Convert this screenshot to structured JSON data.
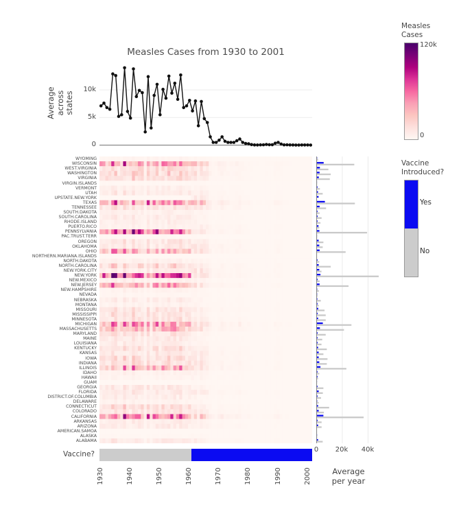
{
  "title": "Measles Cases from 1930 to 2001",
  "years": [
    1930,
    1931,
    1932,
    1933,
    1934,
    1935,
    1936,
    1937,
    1938,
    1939,
    1940,
    1941,
    1942,
    1943,
    1944,
    1945,
    1946,
    1947,
    1948,
    1949,
    1950,
    1951,
    1952,
    1953,
    1954,
    1955,
    1956,
    1957,
    1958,
    1959,
    1960,
    1961,
    1962,
    1963,
    1964,
    1965,
    1966,
    1967,
    1968,
    1969,
    1970,
    1971,
    1972,
    1973,
    1974,
    1975,
    1976,
    1977,
    1978,
    1979,
    1980,
    1981,
    1982,
    1983,
    1984,
    1985,
    1986,
    1987,
    1988,
    1989,
    1990,
    1991,
    1992,
    1993,
    1994,
    1995,
    1996,
    1997,
    1998,
    1999,
    2000,
    2001
  ],
  "states": [
    "WYOMING",
    "WISCONSIN",
    "WEST.VIRGINIA",
    "WASHINGTON",
    "VIRGINIA",
    "VIRGIN.ISLANDS",
    "VERMONT",
    "UTAH",
    "UPSTATE.NEW.YORK",
    "TEXAS",
    "TENNESSEE",
    "SOUTH.DAKOTA",
    "SOUTH.CAROLINA",
    "RHODE.ISLAND",
    "PUERTO.RICO",
    "PENNSYLVANIA",
    "PAC.TRUST.TERR",
    "OREGON",
    "OKLAHOMA",
    "OHIO",
    "NORTHERN.MARIANA.ISLANDS",
    "NORTH.DAKOTA",
    "NORTH.CAROLINA",
    "NEW.YORK.CITY",
    "NEW.YORK",
    "NEW.MEXICO",
    "NEW.JERSEY",
    "NEW.HAMPSHIRE",
    "NEVADA",
    "NEBRASKA",
    "MONTANA",
    "MISSOURI",
    "MISSISSIPPI",
    "MINNESOTA",
    "MICHIGAN",
    "MASSACHUSETTS",
    "MARYLAND",
    "MAINE",
    "LOUISIANA",
    "KENTUCKY",
    "KANSAS",
    "IOWA",
    "INDIANA",
    "ILLINOIS",
    "IDAHO",
    "HAWAII",
    "GUAM",
    "GEORGIA",
    "FLORIDA",
    "DISTRICT.OF.COLUMBIA",
    "DELAWARE",
    "CONNECTICUT",
    "COLORADO",
    "CALIFORNIA",
    "ARKANSAS",
    "ARIZONA",
    "AMERICAN.SAMOA",
    "ALASKA",
    "ALABAMA"
  ],
  "chart_data": [
    {
      "type": "line",
      "title": "Measles Cases from 1930 to 2001",
      "ylabel": "Average across states",
      "y_ticks": [
        "0",
        "5k",
        "10k"
      ],
      "y_tick_values_k": [
        0,
        5,
        10
      ],
      "ylim_k": [
        0,
        15.3
      ],
      "x_years_ref": "years",
      "values_k": [
        7.1,
        7.6,
        6.8,
        6.5,
        12.9,
        12.6,
        5.2,
        5.5,
        14,
        6.1,
        4.9,
        13.8,
        8.8,
        9.9,
        9.5,
        2.4,
        12.4,
        3.1,
        9,
        11,
        5.5,
        10.1,
        8.5,
        12.5,
        9.4,
        11.2,
        8.3,
        12.7,
        6.8,
        7.1,
        8.1,
        6.2,
        8,
        3.5,
        7.9,
        4.8,
        4.1,
        1.5,
        0.5,
        0.5,
        0.9,
        1.5,
        0.7,
        0.5,
        0.5,
        0.5,
        0.8,
        1.1,
        0.5,
        0.3,
        0.25,
        0.1,
        0.04,
        0.03,
        0.05,
        0.06,
        0.12,
        0.08,
        0.07,
        0.35,
        0.5,
        0.2,
        0.05,
        0.06,
        0.04,
        0.02,
        0.01,
        0.01,
        0.02,
        0.02,
        0.02,
        0.01
      ],
      "line_color": "#111111",
      "marker": "circle"
    },
    {
      "type": "heatmap",
      "rows_ref": "states",
      "cols_ref": "years",
      "colorbar": {
        "title": "Measles Cases",
        "min_label": "0",
        "max_label": "120k",
        "min_k": 0,
        "max_k": 120
      },
      "colorscale_stops": [
        "#fff7f3",
        "#fde0dd",
        "#fcc5c0",
        "#fa9fb5",
        "#f768a1",
        "#dd3497",
        "#ae017e",
        "#7a0177",
        "#49006a"
      ],
      "row_intensity_before_1961_k_ref": "avg_per_year_no_k",
      "row_intensity_after_1961_k_ref": "avg_per_year_yes_k"
    },
    {
      "type": "bar",
      "orientation": "horizontal",
      "xlabel": "Average per year",
      "x_ticks": [
        "0",
        "20k",
        "40k"
      ],
      "x_tick_values_k": [
        0,
        20,
        40
      ],
      "categories_ref": "states",
      "series": [
        {
          "name": "Yes",
          "color": "#0b0bf2",
          "values_ref": "avg_per_year_yes_k"
        },
        {
          "name": "No",
          "color": "#c9c9c9",
          "values_ref": "avg_per_year_no_k"
        }
      ]
    },
    {
      "type": "strip",
      "label": "Vaccine?",
      "x_years_ref": "years",
      "vaccine_from_year": 1961,
      "no_color": "#cccccc",
      "yes_color": "#0b0bf2",
      "x_ticks": [
        "1930",
        "1940",
        "1950",
        "1960",
        "1970",
        "1980",
        "1990",
        "2000"
      ],
      "x_tick_years": [
        1930,
        1940,
        1950,
        1960,
        1970,
        1980,
        1990,
        2000
      ]
    }
  ],
  "avg_per_year_no_k": [
    0.9,
    29,
    8.9,
    10.7,
    10,
    0.1,
    2.3,
    4.5,
    0,
    29.5,
    7.1,
    2.1,
    3.6,
    2.7,
    1.8,
    39,
    0.1,
    5,
    4.5,
    22.3,
    0,
    1.8,
    10.7,
    3.5,
    48,
    2.1,
    24.6,
    1.5,
    0.5,
    3,
    1.4,
    5.9,
    6.8,
    6.8,
    26.8,
    21,
    6.8,
    4.1,
    3.5,
    7.7,
    5,
    8.2,
    7.7,
    22.9,
    1.8,
    0.9,
    0.05,
    5,
    4.6,
    3.2,
    1.4,
    9.5,
    5.4,
    36.3,
    3.6,
    3.6,
    0,
    0.2,
    4.5
  ],
  "avg_per_year_yes_k": [
    0.15,
    5.2,
    2.3,
    2.1,
    1.5,
    0.05,
    0.4,
    0.8,
    1.3,
    6.2,
    2.1,
    0.4,
    0.5,
    0.4,
    1.2,
    1.9,
    0.05,
    1.4,
    1.8,
    2.1,
    0,
    0.4,
    1.4,
    1.8,
    2.7,
    0.5,
    2.1,
    0.2,
    0.15,
    0.3,
    0.4,
    1,
    0.5,
    0.9,
    4.6,
    2.3,
    0.5,
    0.4,
    0.5,
    0.9,
    1.4,
    1.4,
    1.8,
    2.7,
    0.4,
    0.4,
    0.05,
    0.4,
    1.4,
    0.4,
    0.2,
    0.9,
    1.4,
    5,
    0.5,
    0.9,
    0,
    0.1,
    0.9
  ],
  "colorbar_legend": {
    "title": "Measles Cases",
    "max_label": "120k",
    "min_label": "0"
  },
  "vaccine_legend": {
    "title": "Vaccine Introduced?",
    "yes_label": "Yes",
    "no_label": "No",
    "yes_color": "#0b0bf2",
    "no_color": "#cccccc"
  },
  "bottom": {
    "vaccine_row_label": "Vaccine?"
  },
  "colors": {
    "grid": "#ebebeb",
    "axis_line": "#888888",
    "text": "#444444",
    "bar_blue": "#0b0bf2",
    "bar_gray": "#c9c9c9",
    "line_black": "#111111"
  }
}
